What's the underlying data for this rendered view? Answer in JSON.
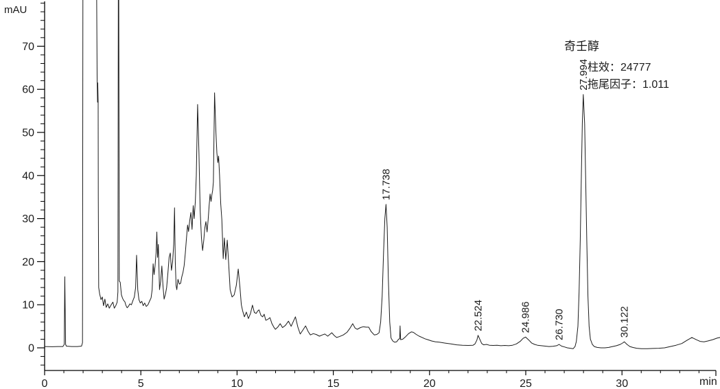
{
  "panel": {
    "background": "#ffffff"
  },
  "colors": {
    "trace": "#1a1a1a",
    "axis": "#000000",
    "text": "#1a1a1a",
    "background": "#ffffff"
  },
  "axis": {
    "y_unit": "mAU",
    "x_unit": "min",
    "y_major_ticks": [
      0,
      10,
      20,
      30,
      40,
      50,
      60,
      70
    ],
    "x_major_ticks": [
      0,
      5,
      10,
      15,
      20,
      25,
      30
    ],
    "y_minor_step": 2,
    "x_minor_step": 1
  },
  "annotation": {
    "compound_name": "奇壬醇",
    "column_efficiency_label": "柱效：24777",
    "tailing_factor_label": "拖尾因子：1.011"
  },
  "peaks": [
    {
      "rt": "17.738",
      "apex_mau": 33.3
    },
    {
      "rt": "22.524",
      "apex_mau": 2.9
    },
    {
      "rt": "24.986",
      "apex_mau": 2.5
    },
    {
      "rt": "26.730",
      "apex_mau": 0.8
    },
    {
      "rt": "27.994",
      "apex_mau": 58.8
    },
    {
      "rt": "30.122",
      "apex_mau": 1.4
    }
  ],
  "chart_data": {
    "type": "line",
    "title": "",
    "xlabel": "min",
    "ylabel": "mAU",
    "xlim": [
      0,
      35
    ],
    "ylim": [
      -5,
      80
    ],
    "grid": false,
    "legend": "none",
    "offscale_value": 85,
    "peak_labels": [
      "17.738",
      "22.524",
      "24.986",
      "26.730",
      "27.994",
      "30.122"
    ],
    "series": [
      {
        "name": "detector-signal",
        "points": [
          [
            0,
            0.3
          ],
          [
            0.4,
            0.25
          ],
          [
            0.7,
            0.3
          ],
          [
            0.95,
            0.3
          ],
          [
            1.02,
            0.8
          ],
          [
            1.05,
            16.5
          ],
          [
            1.09,
            0.8
          ],
          [
            1.13,
            0.4
          ],
          [
            1.4,
            0.3
          ],
          [
            1.7,
            0.3
          ],
          [
            1.92,
            0.4
          ],
          [
            1.97,
            1.2
          ],
          [
            1.99,
            85
          ],
          [
            2.7,
            85
          ],
          [
            2.73,
            63
          ],
          [
            2.75,
            57
          ],
          [
            2.76,
            61.5
          ],
          [
            2.78,
            57
          ],
          [
            2.79,
            35
          ],
          [
            2.81,
            14
          ],
          [
            2.86,
            12.5
          ],
          [
            2.93,
            11.2
          ],
          [
            3.0,
            11.8
          ],
          [
            3.06,
            9.8
          ],
          [
            3.13,
            11.3
          ],
          [
            3.2,
            9.4
          ],
          [
            3.28,
            10.2
          ],
          [
            3.36,
            9.2
          ],
          [
            3.46,
            10
          ],
          [
            3.55,
            10.6
          ],
          [
            3.62,
            9.2
          ],
          [
            3.7,
            9.8
          ],
          [
            3.77,
            10.6
          ],
          [
            3.81,
            13
          ],
          [
            3.83,
            85
          ],
          [
            3.85,
            85
          ],
          [
            3.88,
            15.5
          ],
          [
            3.93,
            15.2
          ],
          [
            3.99,
            12.3
          ],
          [
            4.05,
            11.5
          ],
          [
            4.11,
            11
          ],
          [
            4.17,
            10.7
          ],
          [
            4.22,
            9.9
          ],
          [
            4.29,
            9.3
          ],
          [
            4.35,
            9.6
          ],
          [
            4.43,
            10.2
          ],
          [
            4.51,
            10
          ],
          [
            4.59,
            11
          ],
          [
            4.66,
            11.8
          ],
          [
            4.73,
            14
          ],
          [
            4.78,
            21.5
          ],
          [
            4.84,
            13.5
          ],
          [
            4.9,
            11.2
          ],
          [
            4.97,
            10.4
          ],
          [
            5.05,
            10.8
          ],
          [
            5.12,
            9.8
          ],
          [
            5.2,
            10.4
          ],
          [
            5.28,
            9.6
          ],
          [
            5.37,
            10
          ],
          [
            5.46,
            10.9
          ],
          [
            5.53,
            11.6
          ],
          [
            5.59,
            13.5
          ],
          [
            5.64,
            19.5
          ],
          [
            5.69,
            17
          ],
          [
            5.74,
            19
          ],
          [
            5.79,
            22
          ],
          [
            5.83,
            26.9
          ],
          [
            5.87,
            21
          ],
          [
            5.91,
            24
          ],
          [
            5.97,
            13.5
          ],
          [
            6.03,
            15.5
          ],
          [
            6.09,
            19
          ],
          [
            6.15,
            14.5
          ],
          [
            6.21,
            11.3
          ],
          [
            6.28,
            12.5
          ],
          [
            6.34,
            14
          ],
          [
            6.41,
            17.5
          ],
          [
            6.47,
            21
          ],
          [
            6.53,
            22
          ],
          [
            6.59,
            18
          ],
          [
            6.65,
            20
          ],
          [
            6.71,
            24
          ],
          [
            6.75,
            32.5
          ],
          [
            6.79,
            20
          ],
          [
            6.83,
            14.5
          ],
          [
            6.87,
            13.5
          ],
          [
            6.93,
            15.9
          ],
          [
            7.0,
            14.8
          ],
          [
            7.07,
            15
          ],
          [
            7.13,
            16.5
          ],
          [
            7.19,
            17.5
          ],
          [
            7.25,
            19.1
          ],
          [
            7.31,
            22
          ],
          [
            7.37,
            25.5
          ],
          [
            7.43,
            28.5
          ],
          [
            7.48,
            27
          ],
          [
            7.54,
            29.5
          ],
          [
            7.6,
            31.4
          ],
          [
            7.66,
            27.5
          ],
          [
            7.72,
            33
          ],
          [
            7.77,
            30
          ],
          [
            7.83,
            34
          ],
          [
            7.88,
            40
          ],
          [
            7.95,
            56.5
          ],
          [
            8.02,
            45
          ],
          [
            8.08,
            32
          ],
          [
            8.15,
            25.5
          ],
          [
            8.21,
            22.6
          ],
          [
            8.27,
            25
          ],
          [
            8.32,
            27.7
          ],
          [
            8.38,
            29.3
          ],
          [
            8.44,
            26.9
          ],
          [
            8.5,
            29.8
          ],
          [
            8.55,
            33
          ],
          [
            8.6,
            35.7
          ],
          [
            8.65,
            34
          ],
          [
            8.69,
            35.5
          ],
          [
            8.73,
            36.5
          ],
          [
            8.77,
            38.5
          ],
          [
            8.83,
            59.2
          ],
          [
            8.9,
            50
          ],
          [
            8.95,
            45.2
          ],
          [
            9.0,
            43
          ],
          [
            9.04,
            44.5
          ],
          [
            9.09,
            40
          ],
          [
            9.15,
            33.4
          ],
          [
            9.21,
            29.8
          ],
          [
            9.28,
            20.7
          ],
          [
            9.34,
            25.5
          ],
          [
            9.41,
            20.5
          ],
          [
            9.49,
            25
          ],
          [
            9.56,
            19.7
          ],
          [
            9.64,
            13.5
          ],
          [
            9.74,
            11.8
          ],
          [
            9.85,
            12.3
          ],
          [
            9.96,
            14.5
          ],
          [
            10.06,
            18.3
          ],
          [
            10.15,
            14
          ],
          [
            10.22,
            10
          ],
          [
            10.29,
            8.6
          ],
          [
            10.38,
            7.2
          ],
          [
            10.48,
            8.3
          ],
          [
            10.59,
            6.8
          ],
          [
            10.7,
            8
          ],
          [
            10.8,
            9.9
          ],
          [
            10.9,
            8.2
          ],
          [
            10.99,
            8
          ],
          [
            11.08,
            8.6
          ],
          [
            11.14,
            8.8
          ],
          [
            11.24,
            7.5
          ],
          [
            11.33,
            7.2
          ],
          [
            11.41,
            7.8
          ],
          [
            11.49,
            6.4
          ],
          [
            11.59,
            6.6
          ],
          [
            11.71,
            7
          ],
          [
            11.81,
            5.6
          ],
          [
            11.91,
            4.8
          ],
          [
            11.99,
            4.3
          ],
          [
            12.11,
            4.8
          ],
          [
            12.24,
            5.6
          ],
          [
            12.36,
            4.7
          ],
          [
            12.51,
            5.2
          ],
          [
            12.67,
            6.2
          ],
          [
            12.81,
            5
          ],
          [
            13.03,
            7.2
          ],
          [
            13.16,
            4.8
          ],
          [
            13.28,
            3.2
          ],
          [
            13.43,
            4.2
          ],
          [
            13.56,
            5.1
          ],
          [
            13.69,
            3.8
          ],
          [
            13.81,
            3
          ],
          [
            13.96,
            3.3
          ],
          [
            14.11,
            3.1
          ],
          [
            14.28,
            2.7
          ],
          [
            14.43,
            3
          ],
          [
            14.56,
            3.2
          ],
          [
            14.71,
            2.7
          ],
          [
            14.92,
            3.5
          ],
          [
            15.06,
            2.8
          ],
          [
            15.17,
            2.4
          ],
          [
            15.31,
            2.6
          ],
          [
            15.52,
            3
          ],
          [
            15.71,
            3.6
          ],
          [
            15.86,
            4.5
          ],
          [
            16.01,
            5.6
          ],
          [
            16.13,
            4.6
          ],
          [
            16.24,
            4.3
          ],
          [
            16.41,
            4.7
          ],
          [
            16.56,
            4.9
          ],
          [
            16.71,
            4.8
          ],
          [
            16.84,
            4.8
          ],
          [
            16.96,
            3.8
          ],
          [
            17.13,
            3
          ],
          [
            17.26,
            3.1
          ],
          [
            17.38,
            3.5
          ],
          [
            17.46,
            6
          ],
          [
            17.54,
            12
          ],
          [
            17.61,
            22
          ],
          [
            17.68,
            30
          ],
          [
            17.74,
            33.3
          ],
          [
            17.8,
            28
          ],
          [
            17.86,
            16
          ],
          [
            17.93,
            6
          ],
          [
            18.0,
            2.3
          ],
          [
            18.09,
            1.6
          ],
          [
            18.19,
            1.3
          ],
          [
            18.29,
            1.4
          ],
          [
            18.39,
            2
          ],
          [
            18.45,
            2.1
          ],
          [
            18.47,
            5.1
          ],
          [
            18.5,
            1.9
          ],
          [
            18.61,
            2
          ],
          [
            18.76,
            2.6
          ],
          [
            18.91,
            3.3
          ],
          [
            19.05,
            3.7
          ],
          [
            19.16,
            3.6
          ],
          [
            19.31,
            3.1
          ],
          [
            19.46,
            2.7
          ],
          [
            19.62,
            2.4
          ],
          [
            19.76,
            2.1
          ],
          [
            19.91,
            1.9
          ],
          [
            20.11,
            1.6
          ],
          [
            20.31,
            1.4
          ],
          [
            20.51,
            1.3
          ],
          [
            20.81,
            1.1
          ],
          [
            21.11,
            0.9
          ],
          [
            21.41,
            0.7
          ],
          [
            21.71,
            0.6
          ],
          [
            22.01,
            0.55
          ],
          [
            22.26,
            0.6
          ],
          [
            22.36,
            0.9
          ],
          [
            22.46,
            1.8
          ],
          [
            22.52,
            2.9
          ],
          [
            22.61,
            2
          ],
          [
            22.71,
            1
          ],
          [
            22.81,
            0.7
          ],
          [
            22.96,
            0.8
          ],
          [
            23.11,
            0.6
          ],
          [
            23.31,
            0.55
          ],
          [
            23.51,
            0.6
          ],
          [
            23.71,
            0.5
          ],
          [
            23.91,
            0.55
          ],
          [
            24.11,
            0.5
          ],
          [
            24.31,
            0.6
          ],
          [
            24.51,
            0.9
          ],
          [
            24.71,
            1.5
          ],
          [
            24.86,
            2.2
          ],
          [
            24.99,
            2.5
          ],
          [
            25.16,
            1.8
          ],
          [
            25.31,
            1.1
          ],
          [
            25.46,
            0.8
          ],
          [
            25.61,
            0.6
          ],
          [
            25.81,
            0.5
          ],
          [
            26.01,
            0.4
          ],
          [
            26.21,
            0.3
          ],
          [
            26.41,
            0.35
          ],
          [
            26.61,
            0.5
          ],
          [
            26.73,
            0.8
          ],
          [
            26.86,
            0.4
          ],
          [
            27.01,
            0.2
          ],
          [
            27.16,
            0
          ],
          [
            27.31,
            -0.1
          ],
          [
            27.46,
            -0.2
          ],
          [
            27.56,
            0.3
          ],
          [
            27.63,
            1.5
          ],
          [
            27.71,
            5
          ],
          [
            27.77,
            13
          ],
          [
            27.83,
            25
          ],
          [
            27.89,
            40
          ],
          [
            27.94,
            52
          ],
          [
            27.99,
            58.8
          ],
          [
            28.06,
            52
          ],
          [
            28.11,
            40
          ],
          [
            28.17,
            25
          ],
          [
            28.23,
            12
          ],
          [
            28.29,
            5
          ],
          [
            28.36,
            2
          ],
          [
            28.46,
            0.8
          ],
          [
            28.56,
            0.3
          ],
          [
            28.71,
            0.1
          ],
          [
            28.91,
            0
          ],
          [
            29.11,
            0
          ],
          [
            29.31,
            0.1
          ],
          [
            29.51,
            0.3
          ],
          [
            29.71,
            0.5
          ],
          [
            29.91,
            0.8
          ],
          [
            30.06,
            1.2
          ],
          [
            30.12,
            1.4
          ],
          [
            30.26,
            0.8
          ],
          [
            30.41,
            0.3
          ],
          [
            30.56,
            0.1
          ],
          [
            30.76,
            -0.1
          ],
          [
            31.01,
            -0.2
          ],
          [
            31.31,
            -0.2
          ],
          [
            31.61,
            -0.15
          ],
          [
            31.91,
            -0.1
          ],
          [
            32.21,
            0
          ],
          [
            32.51,
            0.3
          ],
          [
            32.81,
            0.6
          ],
          [
            33.11,
            1
          ],
          [
            33.36,
            1.7
          ],
          [
            33.63,
            2.4
          ],
          [
            33.86,
            1.9
          ],
          [
            34.06,
            1.5
          ],
          [
            34.26,
            1.4
          ],
          [
            34.46,
            1.6
          ],
          [
            34.71,
            1.9
          ],
          [
            34.96,
            2.3
          ],
          [
            35.1,
            2.4
          ]
        ]
      }
    ]
  }
}
